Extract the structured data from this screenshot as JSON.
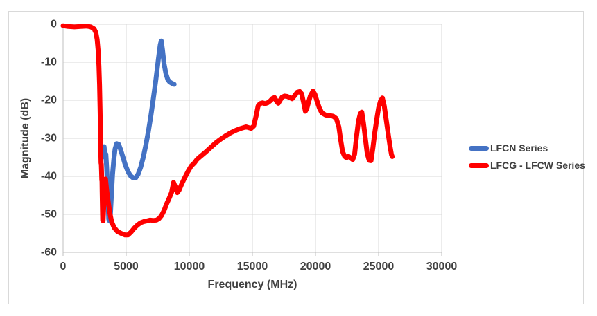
{
  "chart_data": {
    "type": "line",
    "title": "",
    "xlabel": "Frequency (MHz)",
    "ylabel": "Magnitude (dB)",
    "xlim": [
      0,
      30000
    ],
    "ylim": [
      -60,
      0
    ],
    "xticks": [
      0,
      5000,
      10000,
      15000,
      20000,
      25000,
      30000
    ],
    "yticks": [
      0,
      -10,
      -20,
      -30,
      -40,
      -50,
      -60
    ],
    "grid": true,
    "legend_position": "right",
    "colors": {
      "gridline": "#d9d9d9",
      "axis_line": "#bfbfbf",
      "label_text": "#404040",
      "frame_border": "#d9d9d9",
      "background": "#ffffff"
    },
    "series": [
      {
        "name": "LFCN Series",
        "color": "#4472C4",
        "stroke_width": 7,
        "points": [
          [
            3250,
            -32.2
          ],
          [
            3330,
            -35
          ],
          [
            3390,
            -34.2
          ],
          [
            3450,
            -37.5
          ],
          [
            3530,
            -43
          ],
          [
            3580,
            -48
          ],
          [
            3620,
            -51.3
          ],
          [
            3700,
            -51.8
          ],
          [
            3760,
            -49.5
          ],
          [
            3830,
            -45
          ],
          [
            3920,
            -39.5
          ],
          [
            4020,
            -35.5
          ],
          [
            4120,
            -32.8
          ],
          [
            4250,
            -31.4
          ],
          [
            4400,
            -31.6
          ],
          [
            4550,
            -32.9
          ],
          [
            4750,
            -35
          ],
          [
            4950,
            -37.2
          ],
          [
            5150,
            -38.8
          ],
          [
            5350,
            -39.9
          ],
          [
            5550,
            -40.4
          ],
          [
            5750,
            -40.4
          ],
          [
            5950,
            -39.4
          ],
          [
            6150,
            -37.6
          ],
          [
            6350,
            -35
          ],
          [
            6550,
            -31.9
          ],
          [
            6750,
            -28.3
          ],
          [
            6950,
            -24.2
          ],
          [
            7150,
            -19.6
          ],
          [
            7350,
            -14.6
          ],
          [
            7550,
            -9.2
          ],
          [
            7700,
            -5.4
          ],
          [
            7780,
            -4.4
          ],
          [
            7880,
            -6.8
          ],
          [
            8000,
            -10.4
          ],
          [
            8150,
            -13
          ],
          [
            8300,
            -14.6
          ],
          [
            8450,
            -15.2
          ],
          [
            8650,
            -15.6
          ],
          [
            8800,
            -15.8
          ]
        ]
      },
      {
        "name": "LFCG - LFCW Series",
        "color": "#FF0000",
        "stroke_width": 7,
        "points": [
          [
            0,
            -0.4
          ],
          [
            400,
            -0.6
          ],
          [
            900,
            -0.7
          ],
          [
            1400,
            -0.6
          ],
          [
            1900,
            -0.5
          ],
          [
            2200,
            -0.7
          ],
          [
            2450,
            -1.2
          ],
          [
            2600,
            -2.2
          ],
          [
            2700,
            -4
          ],
          [
            2780,
            -7
          ],
          [
            2840,
            -11
          ],
          [
            2890,
            -16
          ],
          [
            2930,
            -22
          ],
          [
            2960,
            -28
          ],
          [
            2985,
            -33
          ],
          [
            3005,
            -36.5
          ],
          [
            3025,
            -36.8
          ],
          [
            3045,
            -38.5
          ],
          [
            3065,
            -41
          ],
          [
            3080,
            -41.3
          ],
          [
            3095,
            -44
          ],
          [
            3115,
            -48
          ],
          [
            3135,
            -51.5
          ],
          [
            3170,
            -51.7
          ],
          [
            3220,
            -48
          ],
          [
            3290,
            -43
          ],
          [
            3360,
            -40.7
          ],
          [
            3450,
            -43.5
          ],
          [
            3550,
            -46
          ],
          [
            3700,
            -49.5
          ],
          [
            3850,
            -52
          ],
          [
            4050,
            -53.5
          ],
          [
            4300,
            -54.5
          ],
          [
            4600,
            -55
          ],
          [
            4900,
            -55.4
          ],
          [
            5150,
            -55.4
          ],
          [
            5400,
            -54.6
          ],
          [
            5650,
            -53.6
          ],
          [
            5900,
            -52.8
          ],
          [
            6150,
            -52.2
          ],
          [
            6400,
            -51.9
          ],
          [
            6650,
            -51.7
          ],
          [
            6900,
            -51.5
          ],
          [
            7150,
            -51.6
          ],
          [
            7400,
            -51.5
          ],
          [
            7600,
            -51.1
          ],
          [
            7800,
            -50.3
          ],
          [
            8000,
            -49
          ],
          [
            8200,
            -47.3
          ],
          [
            8400,
            -45.8
          ],
          [
            8600,
            -44.2
          ],
          [
            8750,
            -41.6
          ],
          [
            8900,
            -42.8
          ],
          [
            9050,
            -44.3
          ],
          [
            9200,
            -43.6
          ],
          [
            9400,
            -42
          ],
          [
            9650,
            -40.3
          ],
          [
            9900,
            -38.7
          ],
          [
            10150,
            -37.3
          ],
          [
            10400,
            -36.5
          ],
          [
            10600,
            -35.6
          ],
          [
            10900,
            -34.7
          ],
          [
            11300,
            -33.6
          ],
          [
            11700,
            -32.4
          ],
          [
            12100,
            -31.2
          ],
          [
            12500,
            -30.2
          ],
          [
            12900,
            -29.3
          ],
          [
            13300,
            -28.5
          ],
          [
            13700,
            -27.9
          ],
          [
            14100,
            -27.4
          ],
          [
            14500,
            -27
          ],
          [
            14900,
            -27.4
          ],
          [
            15100,
            -26.8
          ],
          [
            15300,
            -24
          ],
          [
            15450,
            -21.5
          ],
          [
            15600,
            -20.9
          ],
          [
            15800,
            -20.7
          ],
          [
            16000,
            -20.9
          ],
          [
            16200,
            -20.7
          ],
          [
            16400,
            -20.2
          ],
          [
            16600,
            -19.5
          ],
          [
            16750,
            -19.3
          ],
          [
            16900,
            -20.2
          ],
          [
            17050,
            -20.8
          ],
          [
            17200,
            -20
          ],
          [
            17350,
            -19.2
          ],
          [
            17550,
            -18.9
          ],
          [
            17750,
            -19
          ],
          [
            17950,
            -19.3
          ],
          [
            18150,
            -19.6
          ],
          [
            18350,
            -18.8
          ],
          [
            18550,
            -17.9
          ],
          [
            18750,
            -17.7
          ],
          [
            18900,
            -18.3
          ],
          [
            19050,
            -20.5
          ],
          [
            19200,
            -22.9
          ],
          [
            19300,
            -22.3
          ],
          [
            19450,
            -20.5
          ],
          [
            19600,
            -18.8
          ],
          [
            19800,
            -17.6
          ],
          [
            19950,
            -18.4
          ],
          [
            20100,
            -20
          ],
          [
            20300,
            -22
          ],
          [
            20500,
            -23.3
          ],
          [
            20800,
            -23.9
          ],
          [
            21100,
            -24
          ],
          [
            21400,
            -24.2
          ],
          [
            21650,
            -24.8
          ],
          [
            21850,
            -27
          ],
          [
            22000,
            -30.5
          ],
          [
            22150,
            -33.5
          ],
          [
            22300,
            -34.7
          ],
          [
            22450,
            -35.1
          ],
          [
            22600,
            -34.7
          ],
          [
            22800,
            -35.2
          ],
          [
            22950,
            -35.6
          ],
          [
            23100,
            -34.2
          ],
          [
            23250,
            -29.5
          ],
          [
            23400,
            -25.5
          ],
          [
            23550,
            -23.5
          ],
          [
            23670,
            -23.1
          ],
          [
            23800,
            -26
          ],
          [
            23950,
            -30
          ],
          [
            24100,
            -34
          ],
          [
            24250,
            -35.8
          ],
          [
            24400,
            -35.9
          ],
          [
            24550,
            -32.5
          ],
          [
            24700,
            -28.5
          ],
          [
            24850,
            -25
          ],
          [
            25000,
            -22
          ],
          [
            25150,
            -20.2
          ],
          [
            25300,
            -19.4
          ],
          [
            25450,
            -21.5
          ],
          [
            25600,
            -25
          ],
          [
            25750,
            -28.5
          ],
          [
            25900,
            -32
          ],
          [
            26020,
            -34.3
          ],
          [
            26080,
            -34.8
          ]
        ]
      }
    ]
  },
  "legend": {
    "items": [
      {
        "label": "LFCN Series"
      },
      {
        "label": "LFCG - LFCW Series"
      }
    ]
  }
}
